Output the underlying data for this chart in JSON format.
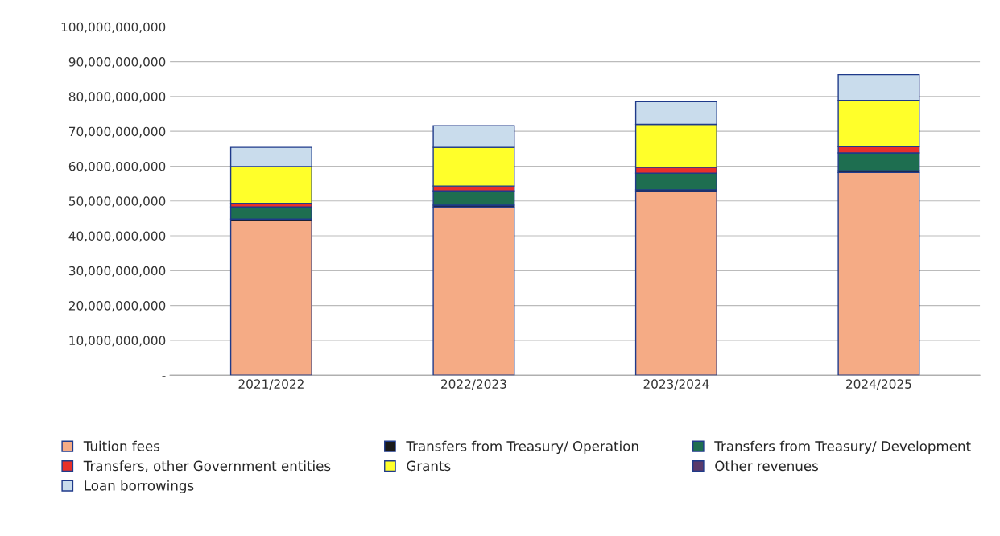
{
  "chart_data": {
    "type": "bar",
    "stacked": true,
    "categories": [
      "2021/2022",
      "2022/2023",
      "2023/2024",
      "2024/2025"
    ],
    "series": [
      {
        "name": "Tuition fees",
        "color": "#f5ab85",
        "values": [
          44300000000,
          48300000000,
          52700000000,
          58200000000
        ]
      },
      {
        "name": "Transfers from Treasury/ Operation",
        "color": "#1a1a1a",
        "values": [
          500000000,
          500000000,
          500000000,
          500000000
        ]
      },
      {
        "name": "Transfers from Treasury/ Development",
        "color": "#1e6e50",
        "values": [
          3500000000,
          4100000000,
          4800000000,
          5100000000
        ]
      },
      {
        "name": "Transfers, other Government entities",
        "color": "#e8302a",
        "values": [
          1000000000,
          1400000000,
          1700000000,
          1800000000
        ]
      },
      {
        "name": "Grants",
        "color": "#ffff2a",
        "values": [
          10600000000,
          11100000000,
          12300000000,
          13300000000
        ]
      },
      {
        "name": "Other revenues",
        "color": "#5a3a6a",
        "values": [
          null,
          null,
          null,
          null
        ]
      },
      {
        "name": "Loan borrowings",
        "color": "#c9dcec",
        "values": [
          5500000000,
          6200000000,
          6500000000,
          7400000000
        ]
      }
    ],
    "ylim": [
      0,
      100000000000
    ],
    "yticks": [
      {
        "value": 0,
        "label": "-"
      },
      {
        "value": 10000000000,
        "label": "10,000,000,000"
      },
      {
        "value": 20000000000,
        "label": "20,000,000,000"
      },
      {
        "value": 30000000000,
        "label": "30,000,000,000"
      },
      {
        "value": 40000000000,
        "label": "40,000,000,000"
      },
      {
        "value": 50000000000,
        "label": "50,000,000,000"
      },
      {
        "value": 60000000000,
        "label": "60,000,000,000"
      },
      {
        "value": 70000000000,
        "label": "70,000,000,000"
      },
      {
        "value": 80000000000,
        "label": "80,000,000,000"
      },
      {
        "value": 90000000000,
        "label": "90,000,000,000"
      },
      {
        "value": 100000000000,
        "label": "100,000,000,000"
      }
    ],
    "grid": "y",
    "legend": "bottom"
  }
}
